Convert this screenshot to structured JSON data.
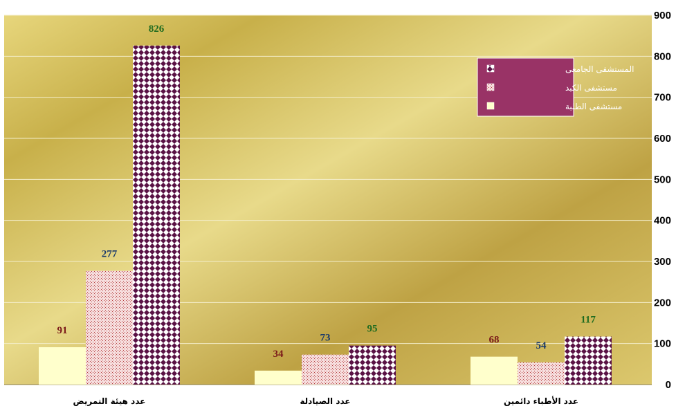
{
  "chart_data": {
    "type": "bar",
    "categories": [
      "عدد هيئة التمريض",
      "عدد الصيادلة",
      "عدد الأطباء دائمين"
    ],
    "series": [
      {
        "name": "مستشفى الطلبة",
        "values": [
          91,
          34,
          68
        ],
        "label_color": "#7b1a1a",
        "fill": "#ffffcc",
        "pattern": "solid"
      },
      {
        "name": "مستشفى الكبد",
        "values": [
          277,
          73,
          54
        ],
        "label_color": "#1a3a6b",
        "fill": "#f2d0d0",
        "pattern": "dots"
      },
      {
        "name": "المستشفى الجامعى",
        "values": [
          826,
          95,
          117
        ],
        "label_color": "#1f6b1f",
        "fill": "#5a1a3a",
        "pattern": "checker"
      }
    ],
    "yticks": [
      0,
      100,
      200,
      300,
      400,
      500,
      600,
      700,
      800,
      900
    ],
    "ylim": [
      0,
      900
    ],
    "y_axis_side": "right",
    "grid": true,
    "legend_position": "top-right",
    "legend_order": [
      "المستشفى الجامعى",
      "مستشفى الكبد",
      "مستشفى الطلبة"
    ],
    "legend_bg": "#993366",
    "title": "",
    "xlabel": "",
    "ylabel": ""
  }
}
